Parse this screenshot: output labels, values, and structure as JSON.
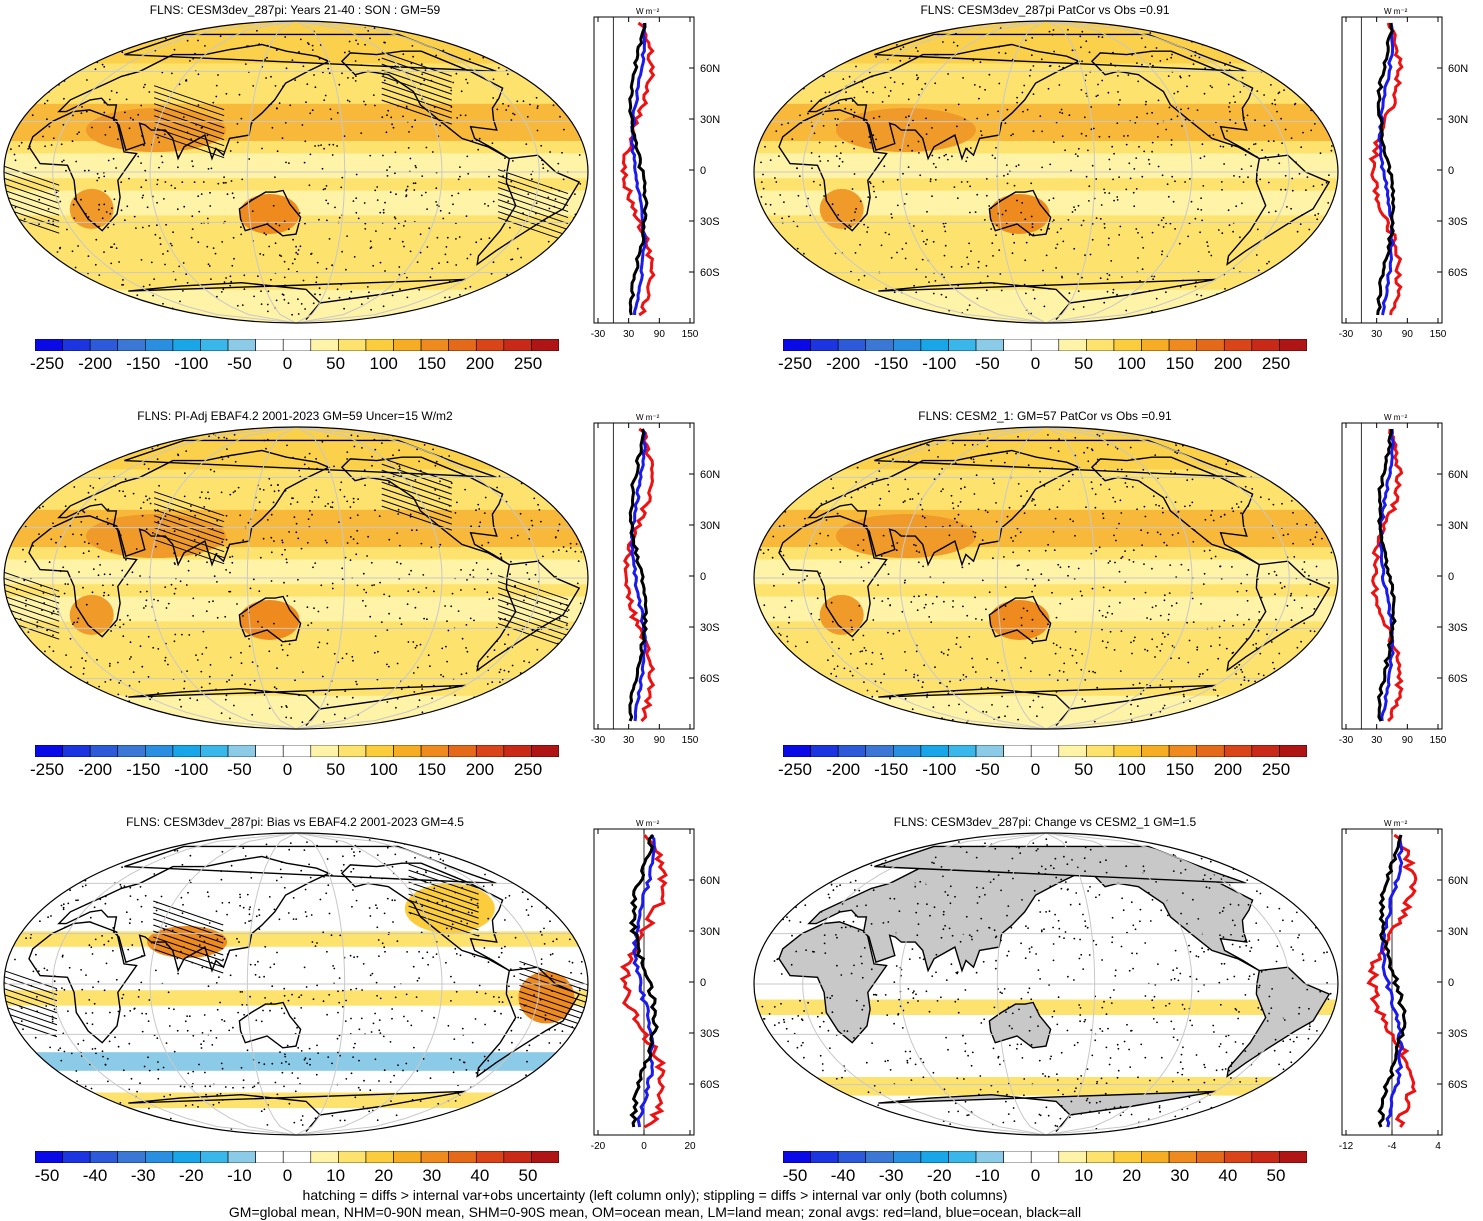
{
  "panels": [
    {
      "title": "FLNS: CESM3dev_287pi: Years 21-40 : SON : GM=59",
      "kind": "abs",
      "hatch": true,
      "zonal_axis": [
        "-30",
        "30",
        "90",
        "150"
      ]
    },
    {
      "title": "FLNS: CESM3dev_287pi PatCor vs Obs =0.91",
      "kind": "abs",
      "hatch": false,
      "zonal_axis": [
        "-30",
        "30",
        "90",
        "150"
      ]
    },
    {
      "title": "FLNS: PI-Adj EBAF4.2 2001-2023 GM=59 Uncer=15 W/m2",
      "kind": "abs",
      "hatch": true,
      "zonal_axis": [
        "-30",
        "30",
        "90",
        "150"
      ]
    },
    {
      "title": "FLNS: CESM2_1: GM=57 PatCor vs Obs =0.91",
      "kind": "abs",
      "hatch": false,
      "zonal_axis": [
        "-30",
        "30",
        "90",
        "150"
      ]
    },
    {
      "title": "FLNS: CESM3dev_287pi: Bias vs EBAF4.2 2001-2023  GM=4.5",
      "kind": "bias",
      "hatch": true,
      "zonal_axis": [
        "-20",
        "0",
        "20"
      ]
    },
    {
      "title": "FLNS: CESM3dev_287pi: Change vs CESM2_1 GM=1.5",
      "kind": "change",
      "hatch": false,
      "zonal_axis": [
        "-12",
        "-4",
        "4"
      ]
    }
  ],
  "zonal_units": "W m⁻²",
  "lat_labels": [
    "60N",
    "30N",
    "0",
    "30S",
    "60S"
  ],
  "colorbars": {
    "abs": {
      "labels": [
        "-250",
        "-200",
        "-150",
        "-100",
        "-50",
        "0",
        "50",
        "100",
        "150",
        "200",
        "250"
      ]
    },
    "diff": {
      "labels": [
        "-50",
        "-40",
        "-30",
        "-20",
        "-10",
        "0",
        "10",
        "20",
        "30",
        "40",
        "50"
      ]
    }
  },
  "colors": {
    "scale": [
      "#0a0ae6",
      "#1d35e0",
      "#2d5ad8",
      "#3b78d6",
      "#2a8fe0",
      "#18a6e8",
      "#3ab7ea",
      "#8ccbe8",
      "#ffffff",
      "#ffffff",
      "#fff3a8",
      "#fde36e",
      "#fbcd3c",
      "#f6ad24",
      "#ee8a1e",
      "#e46a1a",
      "#d94418",
      "#c92a17",
      "#b01515"
    ],
    "land_line": "#000000",
    "grid": "#c8c8c8",
    "zonal_land": "#ee1111",
    "zonal_ocean": "#1a1aee",
    "zonal_all": "#000000",
    "missing": "#c8c8c8"
  },
  "footer": {
    "line1": "hatching = diffs > internal var+obs uncertainty (left column only); stippling = diffs > internal var only (both columns)",
    "line2": "GM=global mean, NHM=0-90N mean, SHM=0-90S mean, OM=ocean mean, LM=land mean; zonal avgs: red=land, blue=ocean, black=all"
  }
}
